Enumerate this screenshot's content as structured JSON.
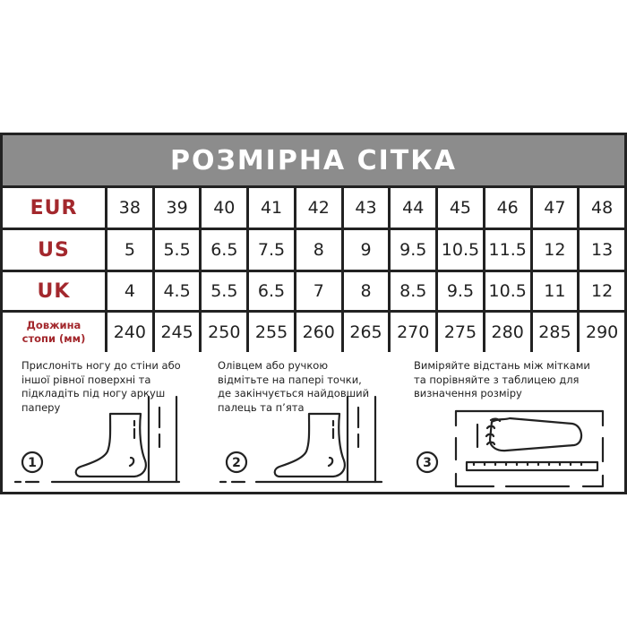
{
  "title": "РОЗМІРНА СІТКА",
  "rows": [
    {
      "label": "EUR",
      "values": [
        "38",
        "39",
        "40",
        "41",
        "42",
        "43",
        "44",
        "45",
        "46",
        "47",
        "48"
      ]
    },
    {
      "label": "US",
      "values": [
        "5",
        "5.5",
        "6.5",
        "7.5",
        "8",
        "9",
        "9.5",
        "10.5",
        "11.5",
        "12",
        "13"
      ]
    },
    {
      "label": "UK",
      "values": [
        "4",
        "4.5",
        "5.5",
        "6.5",
        "7",
        "8",
        "8.5",
        "9.5",
        "10.5",
        "11",
        "12"
      ]
    },
    {
      "label": "Довжина\nстопи (мм)",
      "values": [
        "240",
        "245",
        "250",
        "255",
        "260",
        "265",
        "270",
        "275",
        "280",
        "285",
        "290"
      ]
    }
  ],
  "steps": [
    {
      "number": "1",
      "text": "Прислоніть ногу до стіни або\nіншої рівної поверхні та\nпідкладіть під ногу аркуш\nпаперу"
    },
    {
      "number": "2",
      "text": "Олівцем або ручкою\nвідмітьте на папері точки,\nде закінчується найдовший\nпалець та п’ята"
    },
    {
      "number": "3",
      "text": "Виміряйте відстань між мітками\nта порівняйте з таблицею для\nвизначення розміру"
    }
  ],
  "colors": {
    "label_red": "#a3282d",
    "header_grey": "#8c8c8c",
    "border": "#222222"
  }
}
